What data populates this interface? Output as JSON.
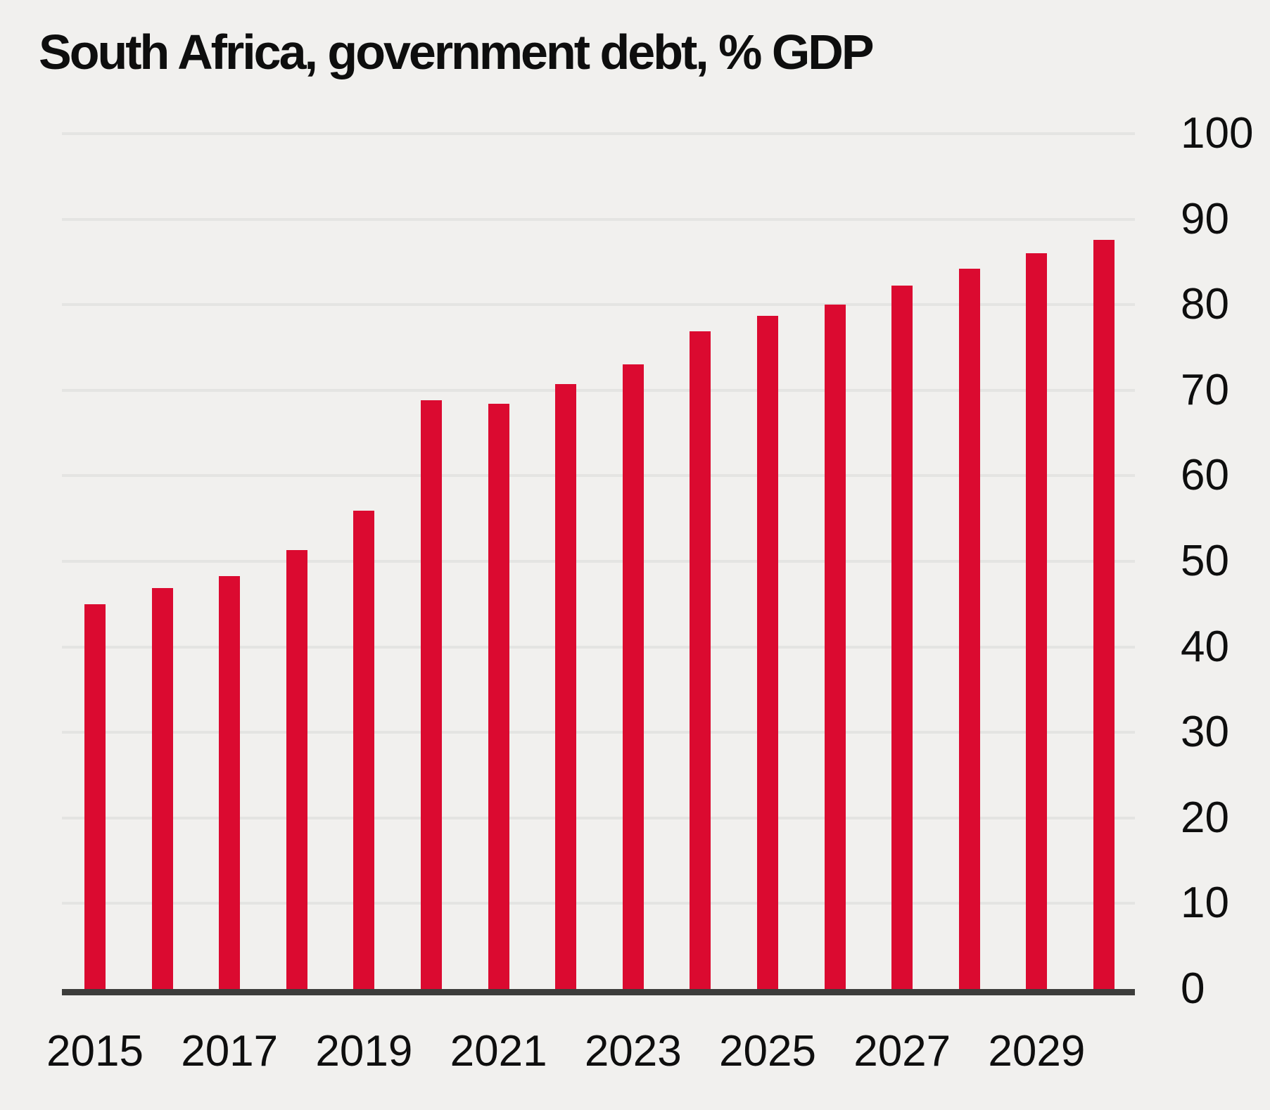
{
  "title": "South Africa, government debt, % GDP",
  "colors": {
    "background": "#F1F0EE",
    "bar": "#DB0A30",
    "gridline": "#E4E4E2",
    "baseline": "#3D3D3B",
    "text": "#0E0E0E"
  },
  "chart_data": {
    "type": "bar",
    "title": "South Africa, government debt, % GDP",
    "xlabel": "",
    "ylabel": "",
    "categories": [
      "2015",
      "2016",
      "2017",
      "2018",
      "2019",
      "2020",
      "2021",
      "2022",
      "2023",
      "2024",
      "2025",
      "2026",
      "2027",
      "2028",
      "2029",
      "2030"
    ],
    "values": [
      45.0,
      46.9,
      48.3,
      51.3,
      55.9,
      68.8,
      68.4,
      70.7,
      73.0,
      76.9,
      78.7,
      80.0,
      82.2,
      84.2,
      86.0,
      87.6
    ],
    "ylim": [
      0,
      100
    ],
    "yticks": [
      0,
      10,
      20,
      30,
      40,
      50,
      60,
      70,
      80,
      90,
      100
    ],
    "xticks_shown": [
      "2015",
      "2017",
      "2019",
      "2021",
      "2023",
      "2025",
      "2027",
      "2029"
    ],
    "grid": "horizontal",
    "legend": "none",
    "y_axis_side": "right",
    "bar_count": 16
  }
}
